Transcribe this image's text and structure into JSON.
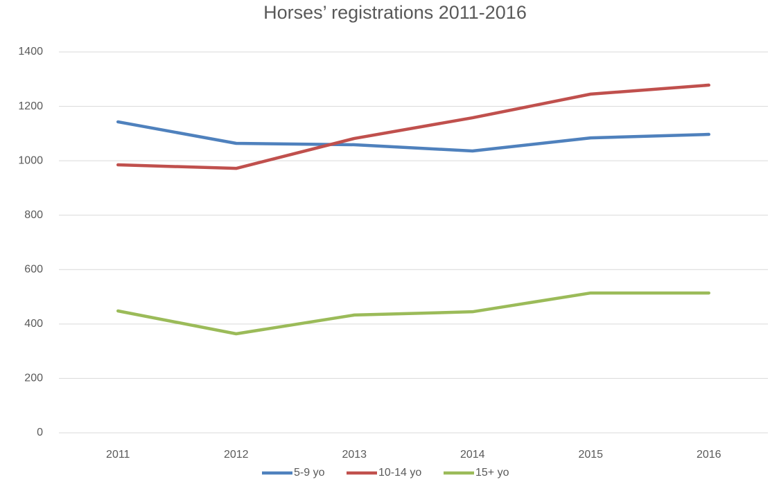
{
  "chart_data": {
    "type": "line",
    "title": "Horses’ registrations 2011-2016",
    "categories": [
      "2011",
      "2012",
      "2013",
      "2014",
      "2015",
      "2016"
    ],
    "series": [
      {
        "name": "5-9 yo",
        "color": "#4f81bd",
        "values": [
          1143,
          1064,
          1059,
          1036,
          1084,
          1097
        ]
      },
      {
        "name": "10-14 yo",
        "color": "#c0504d",
        "values": [
          985,
          972,
          1082,
          1158,
          1245,
          1278
        ]
      },
      {
        "name": "15+ yo",
        "color": "#9bbb59",
        "values": [
          448,
          364,
          433,
          445,
          514,
          514
        ]
      }
    ],
    "ylim": [
      0,
      1400
    ],
    "yticks": [
      0,
      200,
      400,
      600,
      800,
      1000,
      1200,
      1400
    ],
    "grid": true,
    "legend": "bottom"
  }
}
